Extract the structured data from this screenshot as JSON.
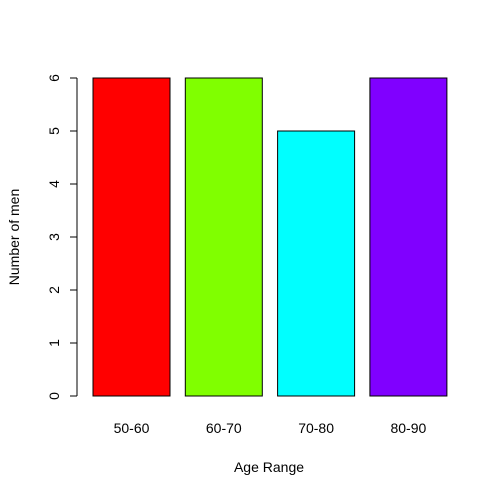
{
  "chart_data": {
    "type": "bar",
    "title": "",
    "xlabel": "Age Range",
    "ylabel": "Number of men",
    "categories": [
      "50-60",
      "60-70",
      "70-80",
      "80-90"
    ],
    "values": [
      6,
      6,
      5,
      6
    ],
    "ylim": [
      0,
      6
    ],
    "yticks": [
      "0",
      "1",
      "2",
      "3",
      "4",
      "5",
      "6"
    ],
    "colors": [
      "#FF0000",
      "#80FF00",
      "#00FFFF",
      "#8000FF"
    ],
    "grid": false,
    "legend": "none"
  }
}
